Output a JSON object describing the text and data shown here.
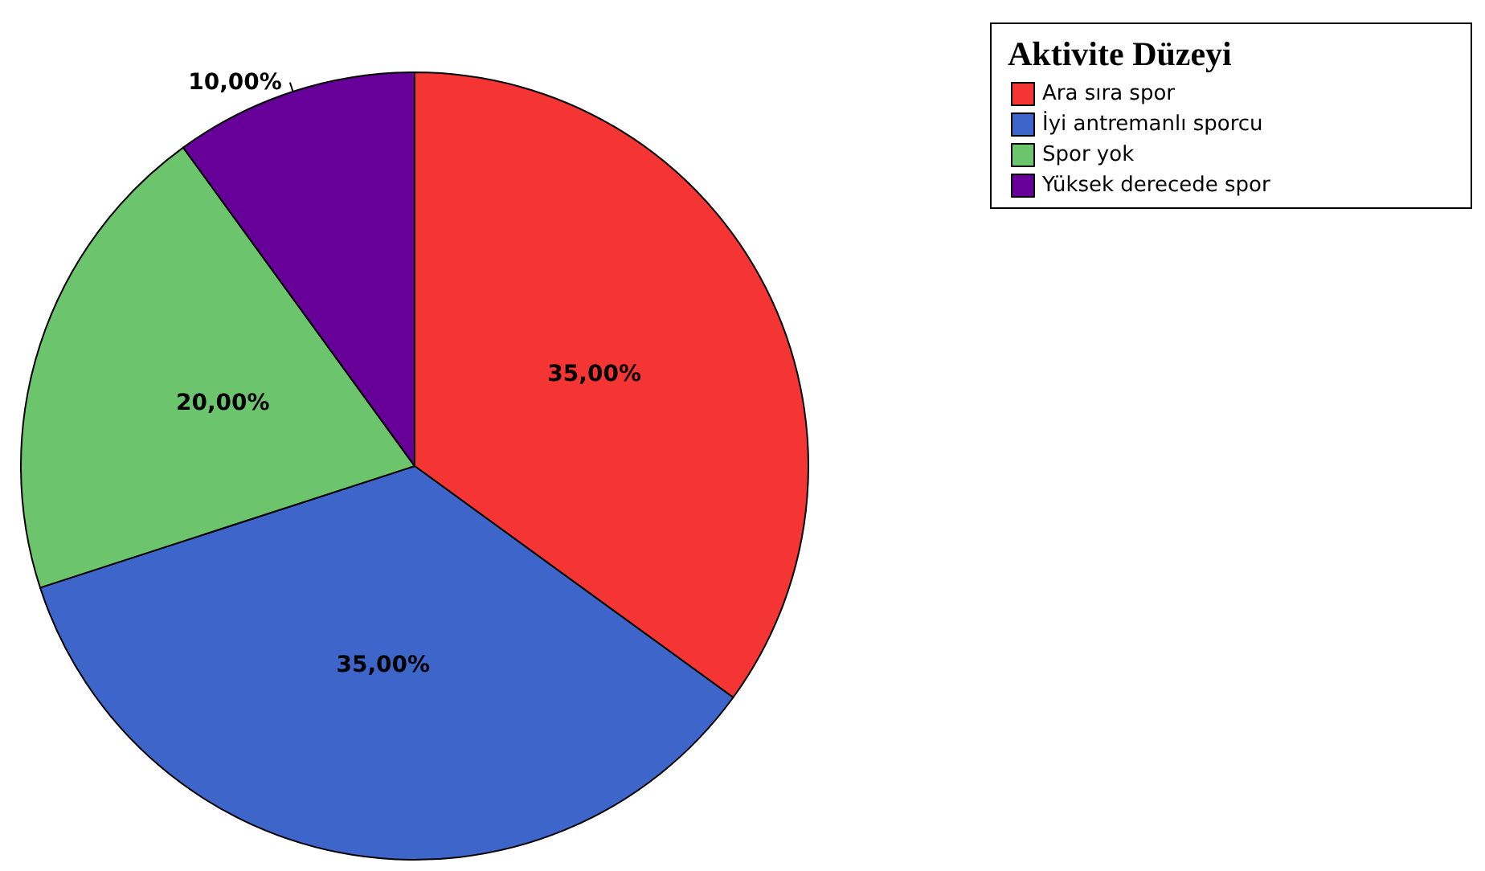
{
  "chart_data": {
    "type": "pie",
    "legend_title": "Aktivite Düzeyi",
    "legend": "top right",
    "categories": [
      "Ara sıra spor",
      "İyi antremanlı sporcu",
      "Spor yok",
      "Yüksek derecede spor"
    ],
    "values": [
      35,
      35,
      20,
      10
    ],
    "colors": [
      "#f53434",
      "#3e65c9",
      "#6cc46c",
      "#660099"
    ],
    "value_labels": [
      "35,00%",
      "35,00%",
      "20,00%",
      "10,00%"
    ]
  }
}
